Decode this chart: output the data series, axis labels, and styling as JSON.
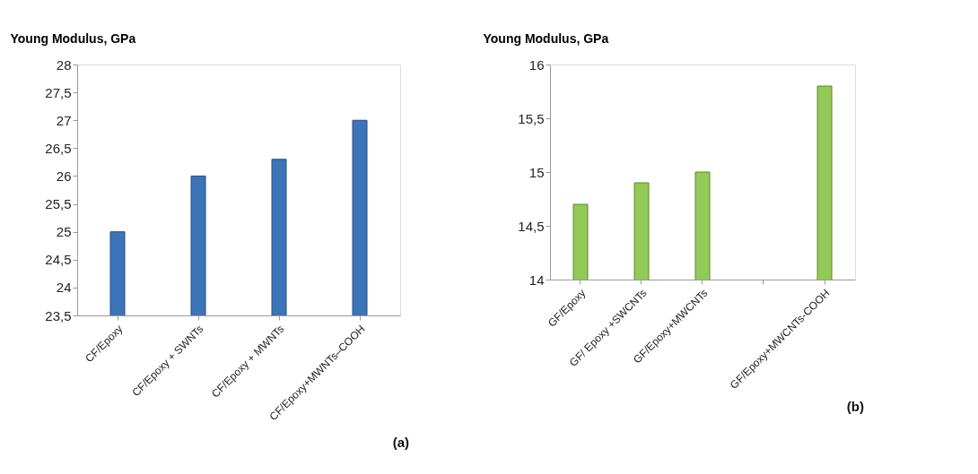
{
  "chart_data": [
    {
      "type": "bar",
      "ylabel": "Young Modulus, GPa",
      "categories": [
        "CF/Epoxy",
        "CF/Epoxy + SWNTs",
        "CF/Epoxy + MWNTs",
        "CF/Epoxy+MWNTs–COOH"
      ],
      "values": [
        25,
        26,
        26.3,
        27
      ],
      "color": "#3c74b8",
      "ylim": [
        23.5,
        28
      ],
      "yticks": [
        {
          "value": 23.5,
          "label": "23,5"
        },
        24,
        {
          "value": 24.5,
          "label": "24,5"
        },
        25,
        {
          "value": 25.5,
          "label": "25,5"
        },
        26,
        {
          "value": 26.5,
          "label": "26,5"
        },
        27,
        {
          "value": 27.5,
          "label": "27,5"
        },
        28
      ],
      "grid": false,
      "legend": false,
      "annotations": [
        "(a)"
      ]
    },
    {
      "type": "bar",
      "ylabel": "Young Modulus, GPa",
      "categories": [
        "GF/Epoxy",
        "GF/ Epoxy +SWCNTs",
        "GF/Epoxy+MWCNTs",
        null,
        "GF/Epoxy+MWCNTs-COOH"
      ],
      "values": [
        14.7,
        14.9,
        15.0,
        null,
        15.8
      ],
      "color": "#92c957",
      "ylim": [
        14,
        16
      ],
      "yticks": [
        14,
        {
          "value": 14.5,
          "label": "14,5"
        },
        15,
        {
          "value": 15.5,
          "label": "15,5"
        },
        16
      ],
      "grid": false,
      "legend": false,
      "annotations": [
        "(b)"
      ]
    }
  ]
}
